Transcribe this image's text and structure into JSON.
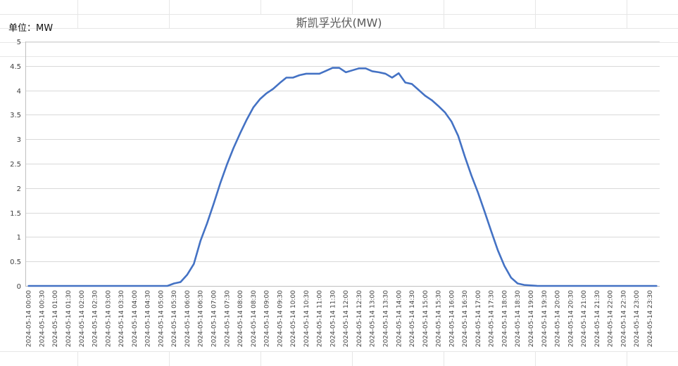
{
  "unit_label": "单位：MW",
  "chart_data": {
    "type": "line",
    "title": "斯凯孚光伏(MW)",
    "xlabel": "",
    "ylabel": "",
    "ylim": [
      0,
      5
    ],
    "yticks": [
      "0",
      "0.5",
      "1",
      "1.5",
      "2",
      "2.5",
      "3",
      "3.5",
      "4",
      "4.5",
      "5"
    ],
    "grid": true,
    "line_color": "#4472C4",
    "x": [
      "2024-05-14 00:00",
      "2024-05-14 00:15",
      "2024-05-14 00:30",
      "2024-05-14 00:45",
      "2024-05-14 01:00",
      "2024-05-14 01:15",
      "2024-05-14 01:30",
      "2024-05-14 01:45",
      "2024-05-14 02:00",
      "2024-05-14 02:15",
      "2024-05-14 02:30",
      "2024-05-14 02:45",
      "2024-05-14 03:00",
      "2024-05-14 03:15",
      "2024-05-14 03:30",
      "2024-05-14 03:45",
      "2024-05-14 04:00",
      "2024-05-14 04:15",
      "2024-05-14 04:30",
      "2024-05-14 04:45",
      "2024-05-14 05:00",
      "2024-05-14 05:15",
      "2024-05-14 05:30",
      "2024-05-14 05:45",
      "2024-05-14 06:00",
      "2024-05-14 06:15",
      "2024-05-14 06:30",
      "2024-05-14 06:45",
      "2024-05-14 07:00",
      "2024-05-14 07:15",
      "2024-05-14 07:30",
      "2024-05-14 07:45",
      "2024-05-14 08:00",
      "2024-05-14 08:15",
      "2024-05-14 08:30",
      "2024-05-14 08:45",
      "2024-05-14 09:00",
      "2024-05-14 09:15",
      "2024-05-14 09:30",
      "2024-05-14 09:45",
      "2024-05-14 10:00",
      "2024-05-14 10:15",
      "2024-05-14 10:30",
      "2024-05-14 10:45",
      "2024-05-14 11:00",
      "2024-05-14 11:15",
      "2024-05-14 11:30",
      "2024-05-14 11:45",
      "2024-05-14 12:00",
      "2024-05-14 12:15",
      "2024-05-14 12:30",
      "2024-05-14 12:45",
      "2024-05-14 13:00",
      "2024-05-14 13:15",
      "2024-05-14 13:30",
      "2024-05-14 13:45",
      "2024-05-14 14:00",
      "2024-05-14 14:15",
      "2024-05-14 14:30",
      "2024-05-14 14:45",
      "2024-05-14 15:00",
      "2024-05-14 15:15",
      "2024-05-14 15:30",
      "2024-05-14 15:45",
      "2024-05-14 16:00",
      "2024-05-14 16:15",
      "2024-05-14 16:30",
      "2024-05-14 16:45",
      "2024-05-14 17:00",
      "2024-05-14 17:15",
      "2024-05-14 17:30",
      "2024-05-14 17:45",
      "2024-05-14 18:00",
      "2024-05-14 18:15",
      "2024-05-14 18:30",
      "2024-05-14 18:45",
      "2024-05-14 19:00",
      "2024-05-14 19:15",
      "2024-05-14 19:30",
      "2024-05-14 19:45",
      "2024-05-14 20:00",
      "2024-05-14 20:15",
      "2024-05-14 20:30",
      "2024-05-14 20:45",
      "2024-05-14 21:00",
      "2024-05-14 21:15",
      "2024-05-14 21:30",
      "2024-05-14 21:45",
      "2024-05-14 22:00",
      "2024-05-14 22:15",
      "2024-05-14 22:30",
      "2024-05-14 22:45",
      "2024-05-14 23:00",
      "2024-05-14 23:15",
      "2024-05-14 23:30",
      "2024-05-14 23:45"
    ],
    "xtick_labels": [
      "2024-05-14 00:00",
      "2024-05-14 00:30",
      "2024-05-14 01:00",
      "2024-05-14 01:30",
      "2024-05-14 02:00",
      "2024-05-14 02:30",
      "2024-05-14 03:00",
      "2024-05-14 03:30",
      "2024-05-14 04:00",
      "2024-05-14 04:30",
      "2024-05-14 05:00",
      "2024-05-14 05:30",
      "2024-05-14 06:00",
      "2024-05-14 06:30",
      "2024-05-14 07:00",
      "2024-05-14 07:30",
      "2024-05-14 08:00",
      "2024-05-14 08:30",
      "2024-05-14 09:00",
      "2024-05-14 09:30",
      "2024-05-14 10:00",
      "2024-05-14 10:30",
      "2024-05-14 11:00",
      "2024-05-14 11:30",
      "2024-05-14 12:00",
      "2024-05-14 12:30",
      "2024-05-14 13:00",
      "2024-05-14 13:30",
      "2024-05-14 14:00",
      "2024-05-14 14:30",
      "2024-05-14 15:00",
      "2024-05-14 15:30",
      "2024-05-14 16:00",
      "2024-05-14 16:30",
      "2024-05-14 17:00",
      "2024-05-14 17:30",
      "2024-05-14 18:00",
      "2024-05-14 18:30",
      "2024-05-14 19:00",
      "2024-05-14 19:30",
      "2024-05-14 20:00",
      "2024-05-14 20:30",
      "2024-05-14 21:00",
      "2024-05-14 21:30",
      "2024-05-14 22:00",
      "2024-05-14 22:30",
      "2024-05-14 23:00",
      "2024-05-14 23:30"
    ],
    "values": [
      0,
      0,
      0,
      0,
      0,
      0,
      0,
      0,
      0,
      0,
      0,
      0,
      0,
      0,
      0,
      0,
      0,
      0,
      0,
      0,
      0,
      0,
      0.05,
      0.08,
      0.23,
      0.45,
      0.92,
      1.28,
      1.68,
      2.1,
      2.48,
      2.82,
      3.12,
      3.4,
      3.65,
      3.82,
      3.94,
      4.03,
      4.15,
      4.26,
      4.26,
      4.31,
      4.34,
      4.34,
      4.34,
      4.4,
      4.46,
      4.46,
      4.37,
      4.41,
      4.45,
      4.45,
      4.39,
      4.37,
      4.34,
      4.26,
      4.35,
      4.16,
      4.13,
      4.01,
      3.89,
      3.8,
      3.68,
      3.55,
      3.36,
      3.07,
      2.65,
      2.26,
      1.91,
      1.52,
      1.12,
      0.73,
      0.41,
      0.17,
      0.05,
      0.02,
      0.01,
      0,
      0,
      0,
      0,
      0,
      0,
      0,
      0,
      0,
      0,
      0,
      0,
      0,
      0,
      0,
      0,
      0,
      0,
      0
    ]
  }
}
